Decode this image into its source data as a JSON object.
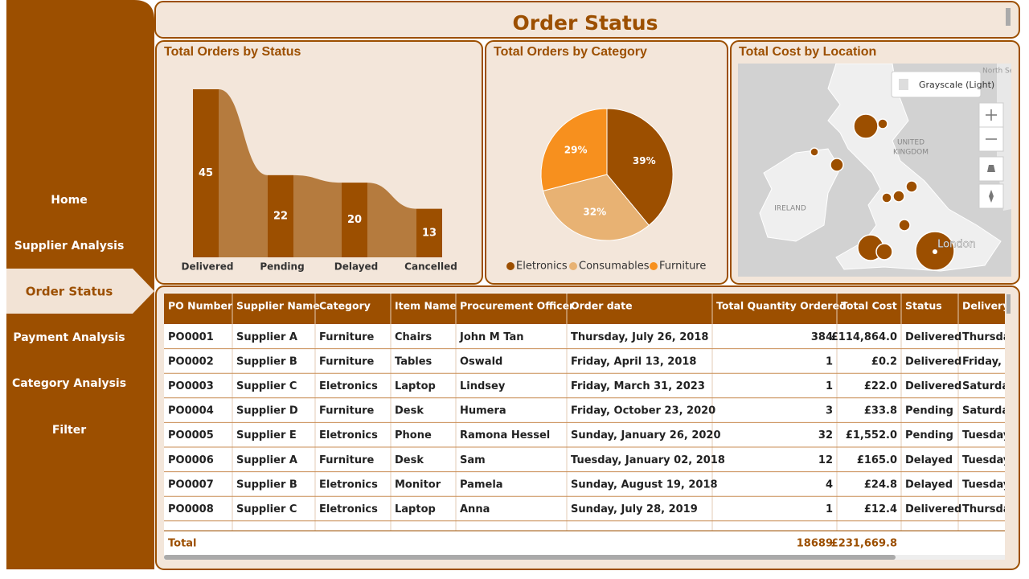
{
  "nav": {
    "items": [
      "Home",
      "Supplier Analysis",
      "Order Status",
      "Payment Analysis",
      "Category Analysis",
      "Filter"
    ],
    "active": 2
  },
  "header": {
    "title": "Order Status"
  },
  "chart_data": [
    {
      "type": "ribbon",
      "title": "Total Orders by Status",
      "categories": [
        "Delivered",
        "Pending",
        "Delayed",
        "Cancelled"
      ],
      "values": [
        45,
        22,
        20,
        13
      ],
      "color": "#9c4f00",
      "ribbon_color": "#b57b3e"
    },
    {
      "type": "pie",
      "title": "Total Orders by Category",
      "categories": [
        "Eletronics",
        "Consumables",
        "Furniture"
      ],
      "values": [
        39,
        32,
        29
      ],
      "value_labels": [
        "39%",
        "32%",
        "29%"
      ],
      "colors": [
        "#9c4f00",
        "#e8b273",
        "#f7901e"
      ],
      "legend": "bottom"
    }
  ],
  "map": {
    "title": "Total Cost by Location",
    "style_button": "Grayscale (Light)",
    "labels": [
      "North Sea",
      "UNITED",
      "KINGDOM",
      "IRELAND",
      "London"
    ]
  },
  "table": {
    "columns": [
      "PO Number",
      "Supplier Name",
      "Category",
      "Item Name",
      "Procurement Officer",
      "Order date",
      "Total Quantity Ordered",
      "Total Cost",
      "Status",
      "Delivery"
    ],
    "rows": [
      [
        "PO0001",
        "Supplier A",
        "Furniture",
        "Chairs",
        "John M Tan",
        "Thursday, July 26, 2018",
        "384",
        "£114,864.0",
        "Delivered",
        "Thursday"
      ],
      [
        "PO0002",
        "Supplier B",
        "Furniture",
        "Tables",
        "Oswald",
        "Friday, April 13, 2018",
        "1",
        "£0.2",
        "Delivered",
        "Friday, A"
      ],
      [
        "PO0003",
        "Supplier C",
        "Eletronics",
        "Laptop",
        "Lindsey",
        "Friday, March 31, 2023",
        "1",
        "£22.0",
        "Delivered",
        "Saturday"
      ],
      [
        "PO0004",
        "Supplier D",
        "Furniture",
        "Desk",
        "Humera",
        "Friday, October 23, 2020",
        "3",
        "£33.8",
        "Pending",
        "Saturday"
      ],
      [
        "PO0005",
        "Supplier E",
        "Eletronics",
        "Phone",
        "Ramona Hessel",
        "Sunday, January 26, 2020",
        "32",
        "£1,552.0",
        "Pending",
        "Tuesday,"
      ],
      [
        "PO0006",
        "Supplier A",
        "Furniture",
        "Desk",
        "Sam",
        "Tuesday, January 02, 2018",
        "12",
        "£165.0",
        "Delayed",
        "Tuesday,"
      ],
      [
        "PO0007",
        "Supplier B",
        "Eletronics",
        "Monitor",
        "Pamela",
        "Sunday, August 19, 2018",
        "4",
        "£24.8",
        "Delayed",
        "Tuesday,"
      ],
      [
        "PO0008",
        "Supplier C",
        "Eletronics",
        "Laptop",
        "Anna",
        "Sunday, July 28, 2019",
        "1",
        "£12.4",
        "Delivered",
        "Thursday"
      ]
    ],
    "total": {
      "label": "Total",
      "quantity": "18689",
      "cost": "£231,669.8"
    }
  }
}
